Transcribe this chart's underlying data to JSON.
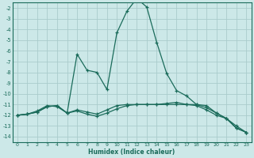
{
  "xlabel": "Humidex (Indice chaleur)",
  "bg_color": "#cce8e8",
  "grid_color": "#aacccc",
  "line_color": "#1a6b5a",
  "xlim": [
    -0.5,
    23.5
  ],
  "ylim": [
    -14.5,
    -1.5
  ],
  "yticks": [
    -2,
    -3,
    -4,
    -5,
    -6,
    -7,
    -8,
    -9,
    -10,
    -11,
    -12,
    -13,
    -14
  ],
  "xticks": [
    0,
    1,
    2,
    3,
    4,
    5,
    6,
    7,
    8,
    9,
    10,
    11,
    12,
    13,
    14,
    15,
    16,
    17,
    18,
    19,
    20,
    21,
    22,
    23
  ],
  "curve1_x": [
    0,
    1,
    2,
    3,
    4,
    5,
    6,
    7,
    8,
    9,
    10,
    11,
    12,
    13,
    14,
    15,
    16,
    17,
    18,
    19,
    20,
    21,
    22,
    23
  ],
  "curve1_y": [
    -12.0,
    -11.9,
    -11.7,
    -11.2,
    -11.1,
    -11.8,
    -6.3,
    -7.8,
    -8.0,
    -9.6,
    -4.3,
    -2.3,
    -1.1,
    -1.9,
    -5.2,
    -8.1,
    -9.7,
    -10.2,
    -11.0,
    -11.1,
    -11.8,
    -12.3,
    -13.2,
    -13.6
  ],
  "curve2_x": [
    0,
    1,
    2,
    3,
    4,
    5,
    6,
    7,
    8,
    9,
    10,
    11,
    12,
    13,
    14,
    15,
    16,
    17,
    18,
    19,
    20,
    21,
    22,
    23
  ],
  "curve2_y": [
    -12.0,
    -11.9,
    -11.7,
    -11.2,
    -11.1,
    -11.8,
    -11.5,
    -11.7,
    -11.9,
    -11.5,
    -11.1,
    -11.0,
    -11.0,
    -11.0,
    -11.0,
    -11.0,
    -11.0,
    -11.0,
    -11.0,
    -11.3,
    -11.8,
    -12.3,
    -13.2,
    -13.6
  ],
  "curve3_x": [
    0,
    1,
    2,
    3,
    4,
    5,
    6,
    7,
    8,
    9,
    10,
    11,
    12,
    13,
    14,
    15,
    16,
    17,
    18,
    19,
    20,
    21,
    22,
    23
  ],
  "curve3_y": [
    -12.0,
    -11.9,
    -11.6,
    -11.1,
    -11.2,
    -11.8,
    -11.6,
    -11.9,
    -12.1,
    -11.8,
    -11.4,
    -11.1,
    -11.0,
    -11.0,
    -11.0,
    -10.9,
    -10.8,
    -11.0,
    -11.1,
    -11.5,
    -12.0,
    -12.3,
    -13.0,
    -13.6
  ]
}
